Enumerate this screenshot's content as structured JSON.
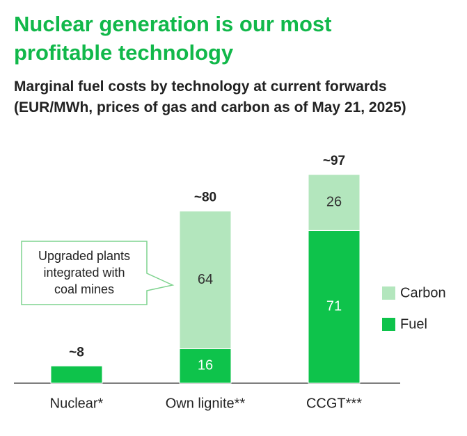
{
  "chart_data": {
    "type": "stacked_bar",
    "title": "Nuclear generation is our most profitable technology",
    "subtitle": "Marginal fuel costs by technology at current forwards (EUR/MWh, prices of gas and carbon as of May 21, 2025)",
    "categories": [
      "Nuclear*",
      "Own lignite**",
      "CCGT***"
    ],
    "series": [
      {
        "name": "Fuel",
        "color": "#0ec34b",
        "values": [
          8,
          16,
          71
        ]
      },
      {
        "name": "Carbon",
        "color": "#b3e6bd",
        "values": [
          null,
          64,
          26
        ]
      }
    ],
    "totals": {
      "values": [
        8,
        80,
        97
      ],
      "value_labels": [
        "~8",
        "~80",
        "~97"
      ]
    },
    "annotation": [
      "Upgraded plants",
      "integrated with",
      "coal mines"
    ]
  }
}
